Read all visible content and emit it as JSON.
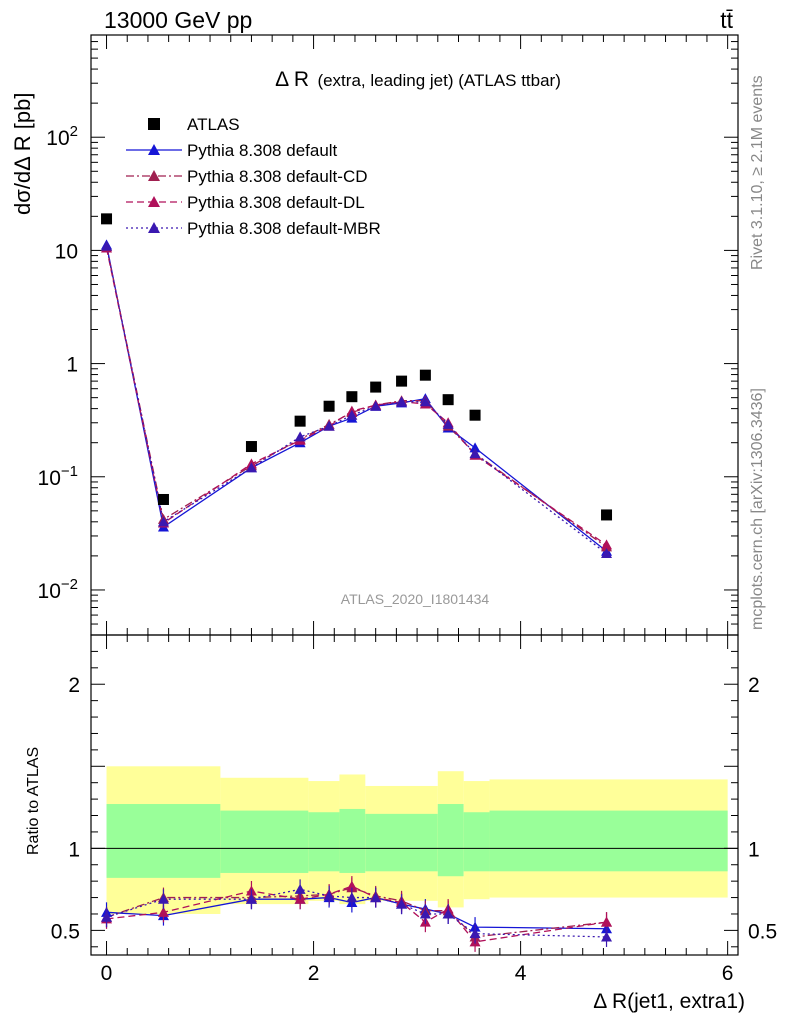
{
  "header": {
    "energy": "13000 GeV pp",
    "process": "tt̄",
    "side_top": "Rivet 3.1.10, ≥ 2.1M events",
    "side_bottom": "mcplots.cern.ch [arXiv:1306.3436]"
  },
  "chart_data": [
    {
      "type": "scatter",
      "panel": "main",
      "title_main": "Δ R",
      "title_sub": "(extra, leading jet) (ATLAS ttbar)",
      "watermark": "ATLAS_2020_I1801434",
      "ylabel": "dσ/dΔ R [pb]",
      "xlabel": "Δ R(jet1, extra1)",
      "yscale": "log",
      "xlim": [
        -0.15,
        6.1
      ],
      "ylim": [
        0.004,
        800
      ],
      "x_ticks": [
        0,
        2,
        4,
        6
      ],
      "y_ticks": [
        {
          "value": 0.01,
          "label": "10",
          "exp": "−2"
        },
        {
          "value": 0.1,
          "label": "10",
          "exp": "−1"
        },
        {
          "value": 1,
          "label": "1",
          "exp": ""
        },
        {
          "value": 10,
          "label": "10",
          "exp": ""
        },
        {
          "value": 100,
          "label": "10",
          "exp": "2"
        }
      ],
      "legend_position": "top-left",
      "x": [
        0,
        0.55,
        1.4,
        1.87,
        2.15,
        2.37,
        2.6,
        2.85,
        3.08,
        3.3,
        3.56,
        4.83
      ],
      "series": [
        {
          "name": "ATLAS",
          "color": "#000000",
          "marker": "square",
          "line": "none",
          "values": [
            19.0,
            0.063,
            0.185,
            0.31,
            0.42,
            0.51,
            0.62,
            0.7,
            0.79,
            0.48,
            0.35,
            0.046
          ]
        },
        {
          "name": "Pythia 8.308 default",
          "color": "#1515d6",
          "marker": "triangle",
          "line": "solid",
          "values": [
            11.2,
            0.036,
            0.12,
            0.2,
            0.28,
            0.33,
            0.42,
            0.45,
            0.49,
            0.27,
            0.18,
            0.022
          ]
        },
        {
          "name": "Pythia 8.308 default-CD",
          "color": "#a02050",
          "marker": "triangle",
          "line": "dashdot",
          "values": [
            10.8,
            0.042,
            0.125,
            0.215,
            0.29,
            0.37,
            0.43,
            0.47,
            0.47,
            0.28,
            0.16,
            0.024
          ]
        },
        {
          "name": "Pythia 8.308 default-DL",
          "color": "#b0105a",
          "marker": "triangle",
          "line": "dashed",
          "values": [
            10.5,
            0.039,
            0.13,
            0.21,
            0.28,
            0.38,
            0.43,
            0.46,
            0.44,
            0.3,
            0.155,
            0.025
          ]
        },
        {
          "name": "Pythia 8.308 default-MBR",
          "color": "#3a18b0",
          "marker": "triangle",
          "line": "dotted",
          "values": [
            10.9,
            0.04,
            0.12,
            0.225,
            0.28,
            0.35,
            0.42,
            0.46,
            0.46,
            0.29,
            0.16,
            0.021
          ]
        }
      ]
    },
    {
      "type": "scatter",
      "panel": "ratio",
      "ylabel": "Ratio to ATLAS",
      "xlabel": "Δ R(jet1, extra1)",
      "xlim": [
        -0.15,
        6.1
      ],
      "ylim": [
        0.35,
        2.3
      ],
      "y_ticks_left": [
        0.5,
        1,
        2
      ],
      "y_ticks_right": [
        0.5,
        1,
        2
      ],
      "x_ticks": [
        0,
        2,
        4,
        6
      ],
      "reference_line": 1,
      "bands": [
        {
          "x0": 0.0,
          "x1": 1.1,
          "inner": [
            0.82,
            1.27
          ],
          "outer": [
            0.6,
            1.5
          ]
        },
        {
          "x0": 1.1,
          "x1": 1.95,
          "inner": [
            0.85,
            1.23
          ],
          "outer": [
            0.66,
            1.43
          ]
        },
        {
          "x0": 1.95,
          "x1": 2.25,
          "inner": [
            0.86,
            1.22
          ],
          "outer": [
            0.68,
            1.41
          ]
        },
        {
          "x0": 2.25,
          "x1": 2.5,
          "inner": [
            0.85,
            1.24
          ],
          "outer": [
            0.66,
            1.45
          ]
        },
        {
          "x0": 2.5,
          "x1": 3.2,
          "inner": [
            0.86,
            1.21
          ],
          "outer": [
            0.68,
            1.38
          ]
        },
        {
          "x0": 3.2,
          "x1": 3.45,
          "inner": [
            0.83,
            1.27
          ],
          "outer": [
            0.64,
            1.47
          ]
        },
        {
          "x0": 3.45,
          "x1": 3.7,
          "inner": [
            0.86,
            1.22
          ],
          "outer": [
            0.69,
            1.41
          ]
        },
        {
          "x0": 3.7,
          "x1": 6.0,
          "inner": [
            0.86,
            1.23
          ],
          "outer": [
            0.7,
            1.42
          ]
        }
      ],
      "x": [
        0,
        0.55,
        1.4,
        1.87,
        2.15,
        2.37,
        2.6,
        2.85,
        3.08,
        3.3,
        3.56,
        4.83
      ],
      "series": [
        {
          "name": "Pythia 8.308 default",
          "color": "#1515d6",
          "line": "solid",
          "values": [
            0.61,
            0.59,
            0.69,
            0.69,
            0.7,
            0.67,
            0.7,
            0.66,
            0.63,
            0.6,
            0.52,
            0.51
          ]
        },
        {
          "name": "Pythia 8.308 default-CD",
          "color": "#a02050",
          "line": "dashdot",
          "values": [
            0.58,
            0.7,
            0.7,
            0.71,
            0.72,
            0.76,
            0.71,
            0.68,
            0.62,
            0.62,
            0.46,
            0.55
          ]
        },
        {
          "name": "Pythia 8.308 default-DL",
          "color": "#b0105a",
          "line": "dashed",
          "values": [
            0.57,
            0.61,
            0.74,
            0.69,
            0.72,
            0.77,
            0.7,
            0.67,
            0.55,
            0.63,
            0.43,
            0.55
          ]
        },
        {
          "name": "Pythia 8.308 default-MBR",
          "color": "#3a18b0",
          "line": "dotted",
          "values": [
            0.58,
            0.69,
            0.69,
            0.75,
            0.71,
            0.7,
            0.7,
            0.66,
            0.6,
            0.6,
            0.48,
            0.46
          ]
        }
      ]
    }
  ]
}
